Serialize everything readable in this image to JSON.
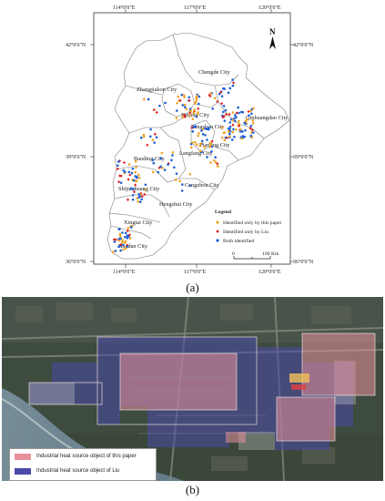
{
  "panel_a": {
    "caption": "(a)",
    "lon_labels": [
      "114°0'0\"E",
      "117°0'0\"E",
      "120°0'0\"E"
    ],
    "lat_labels": [
      "42°0'0\"N",
      "39°0'0\"N",
      "36°0'0\"N"
    ],
    "north": "N",
    "cities": [
      "Chengde City",
      "Zhangjiakou City",
      "Beijing City",
      "Tianjing City",
      "Qinhuangdao City",
      "Tangshan City",
      "Langfang City",
      "Baoding City",
      "Cangzhou City",
      "Shijiazhuang City",
      "Hengshui City",
      "Xingtai City",
      "Handan City"
    ],
    "legend": {
      "title": "Legend",
      "items": [
        {
          "label": "Identified only by this paper",
          "color": "#f0a020"
        },
        {
          "label": "Identified only by Liu",
          "color": "#e02020"
        },
        {
          "label": "Both identified",
          "color": "#1f5fd8"
        }
      ]
    },
    "scale": {
      "zero": "0",
      "end": "100 Km"
    }
  },
  "panel_b": {
    "caption": "(b)",
    "legend": [
      {
        "label": "Industrial heat source object of this paper",
        "color": "#e8909a"
      },
      {
        "label": "Industrial heat source object of Liu",
        "color": "#4a4aa8"
      }
    ]
  }
}
